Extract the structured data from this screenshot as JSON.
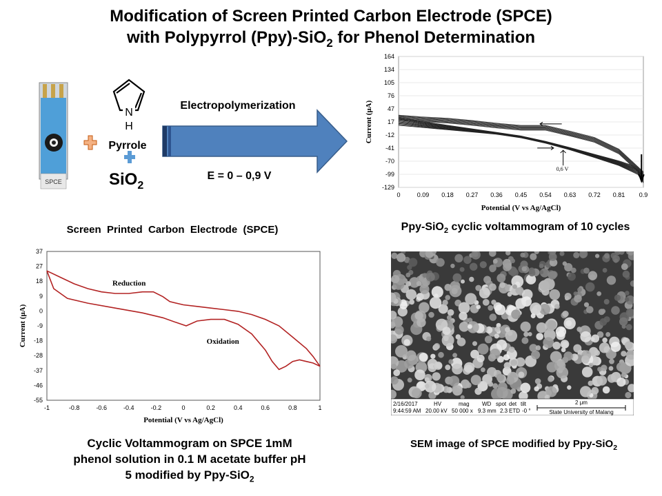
{
  "title": {
    "line1": "Modification of Screen Printed Carbon Electrode (SPCE)",
    "line2_pre": "with Polypyrrol (Ppy)-SiO",
    "line2_sub": "2",
    "line2_post": " for Phenol Determination"
  },
  "scheme": {
    "electrode_label": "SPCE",
    "pyrrole_label": "Pyrrole",
    "pyrrole_nh": "N",
    "pyrrole_h": "H",
    "sio2_main": "SiO",
    "sio2_sub": "2",
    "arrow_label": "Electropolymerization",
    "potential_label": "E = 0 – 0,9 V",
    "spce_caption": "Screen  Printed  Carbon  Electrode  (SPCE)"
  },
  "chart_data": [
    {
      "type": "line",
      "title": "",
      "xlabel": "Potential (V vs Ag/AgCl)",
      "ylabel": "Current (μA)",
      "xlim": [
        0,
        0.9
      ],
      "ylim": [
        -129,
        164
      ],
      "x_ticks": [
        "0",
        "0.09",
        "0.18",
        "0.27",
        "0.36",
        "0.45",
        "0.54",
        "0.63",
        "0.72",
        "0.81",
        "0.9"
      ],
      "y_ticks": [
        "164",
        "134",
        "105",
        "76",
        "47",
        "17",
        "-12",
        "-41",
        "-70",
        "-99",
        "-129"
      ],
      "annotation": "0,6 V",
      "cycles": 10,
      "series_forward_x": [
        0,
        0.09,
        0.18,
        0.27,
        0.36,
        0.45,
        0.54,
        0.63,
        0.72,
        0.81,
        0.88,
        0.9
      ],
      "series_forward_y_first": [
        28,
        18,
        10,
        2,
        -6,
        -14,
        -26,
        -40,
        -55,
        -70,
        -84,
        -99
      ],
      "series_forward_y_last": [
        10,
        5,
        0,
        -5,
        -10,
        -18,
        -30,
        -45,
        -62,
        -80,
        -100,
        -119
      ],
      "series_reverse_x": [
        0.9,
        0.81,
        0.72,
        0.63,
        0.54,
        0.45,
        0.36,
        0.27,
        0.18,
        0.09,
        0
      ],
      "series_reverse_y": [
        -99,
        -48,
        -22,
        -8,
        5,
        5,
        10,
        16,
        21,
        24,
        28
      ],
      "caption_pre": "Ppy-SiO",
      "caption_sub": "2",
      "caption_post": " cyclic voltammogram of 10 cycles"
    },
    {
      "type": "line",
      "title": "",
      "xlabel": "Potential (V vs Ag/AgCl)",
      "ylabel": "Current (μA)",
      "xlim": [
        -1,
        1
      ],
      "ylim": [
        -55,
        37
      ],
      "x_ticks": [
        "-1",
        "-0.8",
        "-0.6",
        "-0.4",
        "-0.2",
        "0",
        "0.2",
        "0.4",
        "0.6",
        "0.8",
        "1"
      ],
      "y_ticks": [
        "37",
        "27",
        "18",
        "9",
        "0",
        "-9",
        "-18",
        "-28",
        "-37",
        "-46",
        "-55"
      ],
      "annotations": [
        "Reduction",
        "Oxidation"
      ],
      "series": [
        {
          "x": [
            -1,
            -0.9,
            -0.8,
            -0.7,
            -0.6,
            -0.5,
            -0.4,
            -0.3,
            -0.22,
            -0.15,
            -0.1,
            0,
            0.1,
            0.2,
            0.3,
            0.4,
            0.5,
            0.6,
            0.7,
            0.8,
            0.9,
            0.95,
            1
          ],
          "y": [
            25,
            21,
            17,
            14,
            12,
            11,
            11,
            12,
            12,
            9,
            6,
            4,
            3,
            2,
            1,
            0,
            -2,
            -5,
            -9,
            -16,
            -23,
            -28,
            -34
          ]
        },
        {
          "x": [
            1,
            0.95,
            0.9,
            0.85,
            0.8,
            0.75,
            0.7,
            0.65,
            0.6,
            0.5,
            0.4,
            0.3,
            0.2,
            0.1,
            0.02,
            -0.05,
            -0.15,
            -0.3,
            -0.5,
            -0.7,
            -0.85,
            -0.95,
            -1
          ],
          "y": [
            -34,
            -32,
            -31,
            -30,
            -31,
            -34,
            -36,
            -31,
            -24,
            -14,
            -8,
            -5,
            -5,
            -6,
            -9,
            -7,
            -4,
            -1,
            2,
            5,
            8,
            14,
            25
          ]
        }
      ],
      "caption_line1": "Cyclic Voltammogram on SPCE 1mM",
      "caption_line2": "phenol solution in 0.1 M acetate buffer pH",
      "caption_line3_pre": "5 modified by Ppy-SiO",
      "caption_line3_sub": "2"
    }
  ],
  "sem": {
    "bar_date": "2/16/2017",
    "bar_time": "9:44:59 AM",
    "bar_hv_label": "HV",
    "bar_hv": "20.00 kV",
    "bar_mag_label": "mag",
    "bar_mag": "50 000 x",
    "bar_wd_label": "WD",
    "bar_wd": "9.3 mm",
    "bar_spot_label": "spot",
    "bar_spot": "2.3",
    "bar_det_label": "det",
    "bar_det": "ETD",
    "bar_tilt_label": "tilt",
    "bar_tilt": "-0 °",
    "bar_scale": "2 μm",
    "bar_institution": "State University of Malang",
    "caption_pre": "SEM image of SPCE modified by Ppy-SiO",
    "caption_sub": "2"
  },
  "colors": {
    "arrow_fill": "#4f81bd",
    "arrow_dark": "#1f3a66",
    "plus_orange": "#f4b183",
    "plus_blue": "#5b9bd5",
    "electrode_blue": "#4f9fd8",
    "cv_red": "#b22222"
  }
}
